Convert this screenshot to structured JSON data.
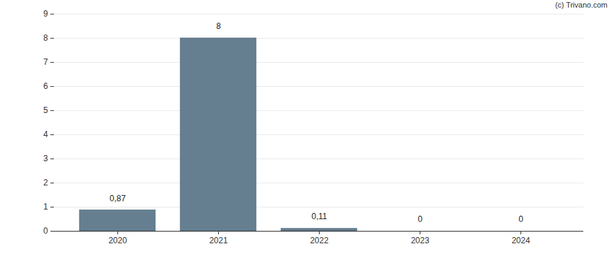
{
  "chart_data": {
    "type": "bar",
    "caption": "(c) Trivano.com",
    "categories": [
      "2020",
      "2021",
      "2022",
      "2023",
      "2024"
    ],
    "values": [
      0.87,
      8,
      0.11,
      0,
      0
    ],
    "value_labels": [
      "0,87",
      "8",
      "0,11",
      "0",
      "0"
    ],
    "color": "#657f91",
    "ylim": [
      0,
      9
    ],
    "yticks": [
      0,
      1,
      2,
      3,
      4,
      5,
      6,
      7,
      8,
      9
    ],
    "grid": true,
    "data_labels": true
  }
}
